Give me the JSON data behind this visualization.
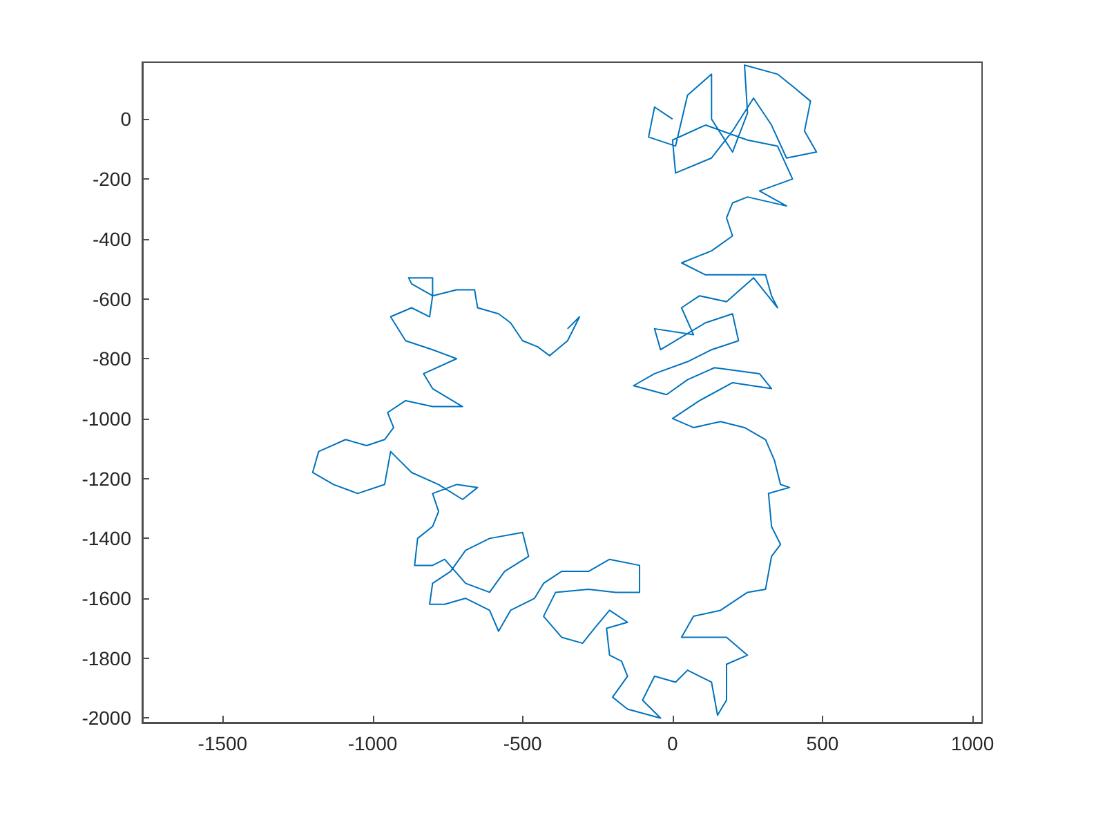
{
  "chart_data": {
    "type": "line",
    "xlim": [
      -1768,
      1032
    ],
    "ylim": [
      -2015,
      190
    ],
    "xticks": [
      -1500,
      -1000,
      -500,
      0,
      500,
      1000
    ],
    "yticks": [
      -2000,
      -1800,
      -1600,
      -1400,
      -1200,
      -1000,
      -800,
      -600,
      -400,
      -200,
      0
    ],
    "series": [
      {
        "color": "#0072bd",
        "x": [
          0,
          -60,
          -80,
          10,
          50,
          130,
          130,
          200,
          250,
          240,
          350,
          400,
          460,
          440,
          480,
          380,
          330,
          270,
          200,
          130,
          10,
          0,
          110,
          250,
          350,
          400,
          290,
          380,
          250,
          200,
          180,
          200,
          130,
          30,
          110,
          310,
          330,
          350,
          270,
          180,
          90,
          30,
          70,
          -60,
          -40,
          110,
          200,
          220,
          130,
          50,
          -60,
          -130,
          -20,
          50,
          140,
          290,
          330,
          200,
          90,
          0,
          70,
          160,
          240,
          310,
          340,
          360,
          390,
          320,
          330,
          360,
          330,
          310,
          250,
          160,
          70,
          30,
          180,
          250,
          180,
          180,
          150,
          130,
          50,
          10,
          -60,
          -100,
          -40,
          -150,
          -200,
          -150,
          -170,
          -210,
          -220,
          -150,
          -210,
          -260,
          -300,
          -370,
          -430,
          -390,
          -280,
          -190,
          -110,
          -110,
          -210,
          -280,
          -370,
          -430,
          -460,
          -540,
          -580,
          -610,
          -690,
          -760,
          -810,
          -800,
          -740,
          -690,
          -610,
          -500,
          -480,
          -560,
          -610,
          -690,
          -760,
          -800,
          -860,
          -850,
          -800,
          -780,
          -800,
          -720,
          -650,
          -700,
          -780,
          -870,
          -910,
          -940,
          -960,
          -1050,
          -1130,
          -1200,
          -1180,
          -1090,
          -1020,
          -960,
          -930,
          -950,
          -890,
          -800,
          -700,
          -800,
          -830,
          -720,
          -800,
          -890,
          -940,
          -870,
          -810,
          -800,
          -870,
          -880,
          -800,
          -800,
          -720,
          -660,
          -650,
          -580,
          -540,
          -500,
          -450,
          -410,
          -350,
          -310,
          -350
        ],
        "values": [
          0,
          40,
          -60,
          -90,
          80,
          150,
          0,
          -110,
          20,
          180,
          150,
          110,
          60,
          -40,
          -110,
          -130,
          -20,
          70,
          -40,
          -130,
          -180,
          -70,
          -20,
          -70,
          -90,
          -200,
          -240,
          -290,
          -260,
          -280,
          -330,
          -390,
          -440,
          -480,
          -520,
          -520,
          -590,
          -630,
          -530,
          -610,
          -590,
          -630,
          -720,
          -700,
          -770,
          -680,
          -650,
          -740,
          -770,
          -810,
          -850,
          -890,
          -920,
          -870,
          -830,
          -850,
          -900,
          -880,
          -940,
          -1000,
          -1030,
          -1010,
          -1030,
          -1070,
          -1140,
          -1220,
          -1230,
          -1250,
          -1360,
          -1420,
          -1460,
          -1570,
          -1580,
          -1640,
          -1660,
          -1730,
          -1730,
          -1790,
          -1820,
          -1940,
          -1990,
          -1880,
          -1840,
          -1880,
          -1860,
          -1940,
          -2000,
          -1970,
          -1930,
          -1860,
          -1810,
          -1790,
          -1700,
          -1680,
          -1640,
          -1700,
          -1750,
          -1730,
          -1660,
          -1580,
          -1570,
          -1580,
          -1580,
          -1490,
          -1470,
          -1510,
          -1510,
          -1550,
          -1600,
          -1640,
          -1710,
          -1640,
          -1600,
          -1620,
          -1620,
          -1550,
          -1510,
          -1440,
          -1400,
          -1380,
          -1460,
          -1510,
          -1580,
          -1550,
          -1470,
          -1490,
          -1490,
          -1400,
          -1360,
          -1310,
          -1250,
          -1220,
          -1230,
          -1270,
          -1220,
          -1180,
          -1140,
          -1110,
          -1220,
          -1250,
          -1220,
          -1180,
          -1110,
          -1070,
          -1090,
          -1070,
          -1030,
          -980,
          -940,
          -960,
          -960,
          -900,
          -850,
          -800,
          -770,
          -740,
          -660,
          -630,
          -660,
          -590,
          -550,
          -530,
          -530,
          -590,
          -570,
          -570,
          -630,
          -650,
          -680,
          -740,
          -760,
          -790,
          -740,
          -660,
          -700
        ]
      }
    ]
  }
}
